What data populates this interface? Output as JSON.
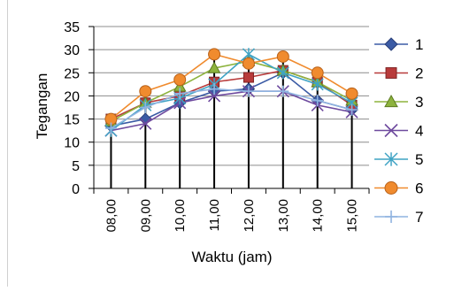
{
  "chart_data": {
    "type": "line",
    "title": "",
    "xlabel": "Waktu (jam)",
    "ylabel": "Tegangan",
    "ylim": [
      0,
      35
    ],
    "yticks": [
      0,
      5,
      10,
      15,
      20,
      25,
      30,
      35
    ],
    "grid": true,
    "legend_position": "right",
    "categories": [
      "08,00",
      "09,00",
      "10,00",
      "11,00",
      "12,00",
      "13,00",
      "14,00",
      "15,00"
    ],
    "series": [
      {
        "name": "1",
        "marker": "diamond",
        "color": "#3B5BA5",
        "values": [
          13.5,
          15.0,
          18.5,
          21.0,
          21.5,
          25.0,
          19.0,
          17.0
        ]
      },
      {
        "name": "2",
        "marker": "square",
        "color": "#B83A3A",
        "values": [
          15.0,
          18.5,
          20.0,
          23.0,
          24.0,
          25.5,
          23.0,
          18.0
        ]
      },
      {
        "name": "3",
        "marker": "triangle",
        "color": "#8DB33D",
        "values": [
          14.5,
          18.5,
          22.0,
          26.0,
          27.5,
          25.5,
          23.0,
          19.0
        ]
      },
      {
        "name": "4",
        "marker": "x",
        "color": "#6E4A9E",
        "values": [
          12.5,
          14.0,
          18.5,
          20.0,
          21.0,
          21.0,
          18.0,
          16.5
        ]
      },
      {
        "name": "5",
        "marker": "star",
        "color": "#3FA3C4",
        "values": [
          12.5,
          18.0,
          19.5,
          22.5,
          29.0,
          25.0,
          22.5,
          18.5
        ]
      },
      {
        "name": "6",
        "marker": "circle",
        "color": "#F08B2E",
        "values": [
          15.0,
          21.0,
          23.5,
          29.0,
          27.0,
          28.5,
          25.0,
          20.5
        ]
      },
      {
        "name": "7",
        "marker": "plus",
        "color": "#8FB3E0",
        "values": [
          13.0,
          17.5,
          20.5,
          21.5,
          21.0,
          21.0,
          19.0,
          17.0
        ]
      }
    ]
  }
}
